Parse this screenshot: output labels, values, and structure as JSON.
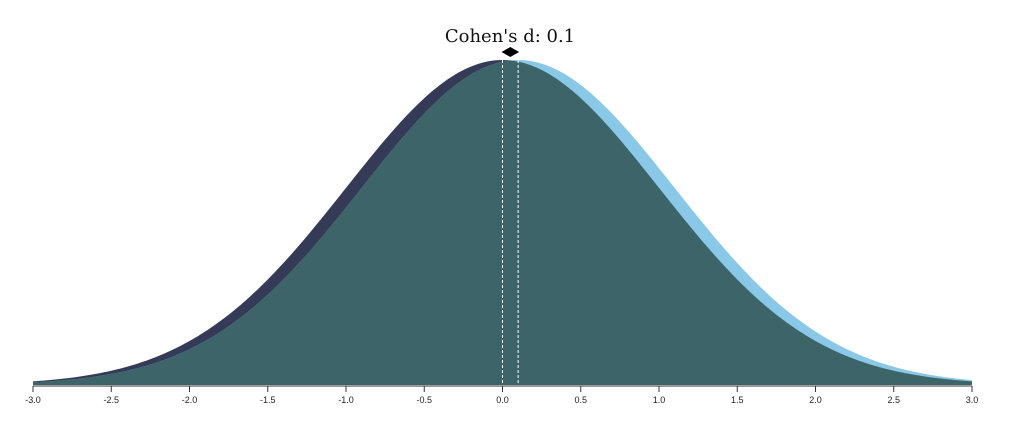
{
  "chart_data": {
    "type": "area",
    "title": "Cohen's d: 0.1",
    "xlabel": "",
    "ylabel": "",
    "xlim": [
      -3.0,
      3.0
    ],
    "grid": false,
    "legend": "none",
    "x_ticks": [
      {
        "value": -3.0,
        "label": "-3.0"
      },
      {
        "value": -2.5,
        "label": "-2.5"
      },
      {
        "value": -2.0,
        "label": "-2.0"
      },
      {
        "value": -1.5,
        "label": "-1.5"
      },
      {
        "value": -1.0,
        "label": "-1.0"
      },
      {
        "value": -0.5,
        "label": "-0.5"
      },
      {
        "value": 0.0,
        "label": "0.0"
      },
      {
        "value": 0.5,
        "label": "0.5"
      },
      {
        "value": 1.0,
        "label": "1.0"
      },
      {
        "value": 1.5,
        "label": "1.5"
      },
      {
        "value": 2.0,
        "label": "2.0"
      },
      {
        "value": 2.5,
        "label": "2.5"
      },
      {
        "value": 3.0,
        "label": "3.0"
      }
    ],
    "cohens_d": 0.1,
    "series": [
      {
        "distribution": "normal",
        "mean": 0.0,
        "sd": 1.0,
        "color": "#353a56"
      },
      {
        "distribution": "normal",
        "mean": 0.1,
        "sd": 1.0,
        "color": "#89c8e6"
      }
    ],
    "overlap_color": "#3d6468",
    "mean_line_color": "#ffffff",
    "arrow_color": "#000000",
    "axis_color": "#333333"
  }
}
